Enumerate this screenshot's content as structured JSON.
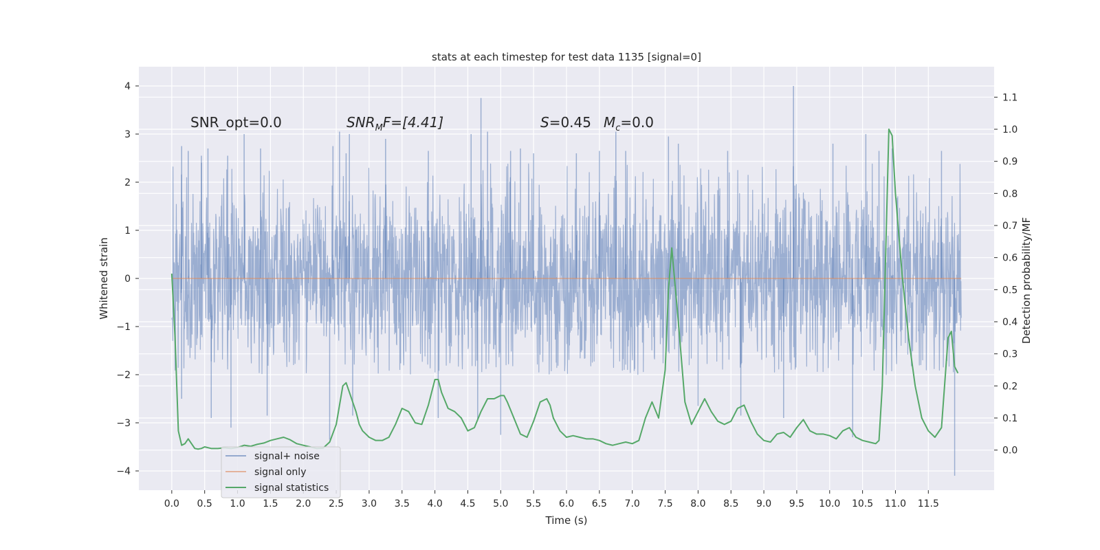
{
  "chart_data": {
    "type": "line",
    "title": "stats at each timestep for test data 1135 [signal=0]",
    "xlabel": "Time (s)",
    "ylabel": "Whitened strain",
    "y2label": "Detection probability/MF",
    "xlim": [
      -0.5,
      12.5
    ],
    "ylim": [
      -4.4,
      4.4
    ],
    "y2lim": [
      -0.125,
      1.195
    ],
    "xticks": [
      0.0,
      0.5,
      1.0,
      1.5,
      2.0,
      2.5,
      3.0,
      3.5,
      4.0,
      4.5,
      5.0,
      5.5,
      6.0,
      6.5,
      7.0,
      7.5,
      8.0,
      8.5,
      9.0,
      9.5,
      10.0,
      10.5,
      11.0,
      11.5
    ],
    "xtick_labels": [
      "0.0",
      "0.5",
      "1.0",
      "1.5",
      "2.0",
      "2.5",
      "3.0",
      "3.5",
      "4.0",
      "4.5",
      "5.0",
      "5.5",
      "6.0",
      "6.5",
      "7.0",
      "7.5",
      "8.0",
      "8.5",
      "9.0",
      "9.5",
      "10.0",
      "10.5",
      "11.0",
      "11.5"
    ],
    "yticks": [
      -4,
      -3,
      -2,
      -1,
      0,
      1,
      2,
      3,
      4
    ],
    "ytick_labels": [
      "−4",
      "−3",
      "−2",
      "−1",
      "0",
      "1",
      "2",
      "3",
      "4"
    ],
    "y2ticks": [
      0.0,
      0.1,
      0.2,
      0.3,
      0.4,
      0.5,
      0.6,
      0.7,
      0.8,
      0.9,
      1.0,
      1.1
    ],
    "y2tick_labels": [
      "0.0",
      "0.1",
      "0.2",
      "0.3",
      "0.4",
      "0.5",
      "0.6",
      "0.7",
      "0.8",
      "0.9",
      "1.0",
      "1.1"
    ],
    "grid": true,
    "legend_position": "lower-left",
    "annotations": [
      "SNR_opt=0.0",
      "SNR",
      "M",
      "F=[4.41]",
      "S",
      "=0.45",
      "M",
      "c",
      "=0.0"
    ],
    "series": [
      {
        "name": "signal+ noise",
        "axis": "left",
        "color": "#4c72b0",
        "time_range": [
          0.0,
          12.0
        ],
        "typical_envelope": [
          -2.0,
          2.4
        ],
        "spikes": [
          [
            0.15,
            2.75
          ],
          [
            0.15,
            -2.5
          ],
          [
            0.25,
            2.65
          ],
          [
            0.45,
            2.55
          ],
          [
            0.55,
            2.7
          ],
          [
            0.6,
            -2.9
          ],
          [
            0.85,
            2.55
          ],
          [
            0.9,
            -3.1
          ],
          [
            1.1,
            3.0
          ],
          [
            1.35,
            2.7
          ],
          [
            1.45,
            -2.85
          ],
          [
            2.45,
            2.75
          ],
          [
            2.4,
            -3.35
          ],
          [
            2.55,
            3.05
          ],
          [
            2.65,
            2.6
          ],
          [
            2.7,
            3.0
          ],
          [
            2.75,
            -2.85
          ],
          [
            3.25,
            2.9
          ],
          [
            3.9,
            2.65
          ],
          [
            4.05,
            -2.9
          ],
          [
            4.55,
            3.0
          ],
          [
            4.65,
            -2.95
          ],
          [
            4.7,
            3.75
          ],
          [
            4.8,
            3.05
          ],
          [
            5.0,
            -3.25
          ],
          [
            5.15,
            2.65
          ],
          [
            5.3,
            2.7
          ],
          [
            5.5,
            2.6
          ],
          [
            6.15,
            2.6
          ],
          [
            6.5,
            2.65
          ],
          [
            6.75,
            3.05
          ],
          [
            6.9,
            2.65
          ],
          [
            7.55,
            2.95
          ],
          [
            7.7,
            2.8
          ],
          [
            8.0,
            -2.65
          ],
          [
            8.45,
            2.65
          ],
          [
            8.65,
            -2.85
          ],
          [
            9.45,
            4.0
          ],
          [
            9.3,
            -2.9
          ],
          [
            10.05,
            2.8
          ],
          [
            10.35,
            -3.3
          ],
          [
            10.55,
            3.0
          ],
          [
            10.75,
            2.65
          ],
          [
            10.95,
            2.7
          ],
          [
            11.7,
            2.65
          ],
          [
            11.9,
            -4.1
          ]
        ]
      },
      {
        "name": "signal only",
        "axis": "left",
        "color": "#dd8452",
        "x": [
          0.0,
          12.0
        ],
        "y": [
          0.0,
          0.0
        ]
      },
      {
        "name": "signal statistics",
        "axis": "right",
        "color": "#55a868",
        "x": [
          0.0,
          0.05,
          0.1,
          0.15,
          0.2,
          0.25,
          0.3,
          0.35,
          0.4,
          0.45,
          0.5,
          0.6,
          0.7,
          0.8,
          0.9,
          1.0,
          1.1,
          1.2,
          1.3,
          1.4,
          1.5,
          1.6,
          1.7,
          1.8,
          1.9,
          2.0,
          2.1,
          2.2,
          2.3,
          2.4,
          2.5,
          2.55,
          2.6,
          2.65,
          2.7,
          2.75,
          2.8,
          2.85,
          2.9,
          3.0,
          3.1,
          3.2,
          3.3,
          3.4,
          3.5,
          3.6,
          3.7,
          3.8,
          3.9,
          4.0,
          4.05,
          4.1,
          4.2,
          4.3,
          4.4,
          4.5,
          4.6,
          4.7,
          4.8,
          4.9,
          5.0,
          5.05,
          5.1,
          5.2,
          5.3,
          5.4,
          5.5,
          5.6,
          5.7,
          5.75,
          5.8,
          5.9,
          6.0,
          6.1,
          6.2,
          6.3,
          6.4,
          6.5,
          6.6,
          6.7,
          6.8,
          6.9,
          7.0,
          7.1,
          7.2,
          7.3,
          7.4,
          7.5,
          7.55,
          7.6,
          7.7,
          7.8,
          7.9,
          8.0,
          8.1,
          8.2,
          8.3,
          8.4,
          8.5,
          8.6,
          8.7,
          8.8,
          8.9,
          9.0,
          9.1,
          9.2,
          9.3,
          9.4,
          9.5,
          9.6,
          9.7,
          9.8,
          9.9,
          10.0,
          10.1,
          10.2,
          10.3,
          10.4,
          10.5,
          10.6,
          10.7,
          10.75,
          10.8,
          10.85,
          10.9,
          10.95,
          11.0,
          11.1,
          11.2,
          11.3,
          11.4,
          11.5,
          11.6,
          11.7,
          11.8,
          11.85,
          11.9,
          11.95
        ],
        "y": [
          0.55,
          0.35,
          0.06,
          0.015,
          0.02,
          0.035,
          0.02,
          0.005,
          0.003,
          0.005,
          0.01,
          0.005,
          0.005,
          0.007,
          0.005,
          0.008,
          0.015,
          0.012,
          0.018,
          0.022,
          0.03,
          0.035,
          0.04,
          0.032,
          0.02,
          0.015,
          0.01,
          0.005,
          0.006,
          0.025,
          0.08,
          0.14,
          0.2,
          0.21,
          0.18,
          0.15,
          0.12,
          0.08,
          0.06,
          0.04,
          0.03,
          0.03,
          0.04,
          0.08,
          0.13,
          0.12,
          0.085,
          0.08,
          0.14,
          0.22,
          0.22,
          0.18,
          0.13,
          0.12,
          0.1,
          0.06,
          0.07,
          0.12,
          0.16,
          0.16,
          0.17,
          0.17,
          0.15,
          0.1,
          0.05,
          0.04,
          0.09,
          0.15,
          0.16,
          0.14,
          0.1,
          0.06,
          0.04,
          0.045,
          0.04,
          0.035,
          0.035,
          0.03,
          0.02,
          0.015,
          0.02,
          0.025,
          0.02,
          0.03,
          0.1,
          0.15,
          0.1,
          0.25,
          0.5,
          0.63,
          0.4,
          0.15,
          0.08,
          0.12,
          0.16,
          0.12,
          0.09,
          0.08,
          0.09,
          0.13,
          0.14,
          0.09,
          0.05,
          0.03,
          0.025,
          0.05,
          0.055,
          0.04,
          0.07,
          0.095,
          0.06,
          0.05,
          0.05,
          0.045,
          0.035,
          0.06,
          0.07,
          0.04,
          0.03,
          0.025,
          0.02,
          0.03,
          0.2,
          0.6,
          1.0,
          0.98,
          0.8,
          0.55,
          0.35,
          0.2,
          0.1,
          0.06,
          0.04,
          0.07,
          0.35,
          0.37,
          0.26,
          0.24
        ]
      }
    ]
  }
}
